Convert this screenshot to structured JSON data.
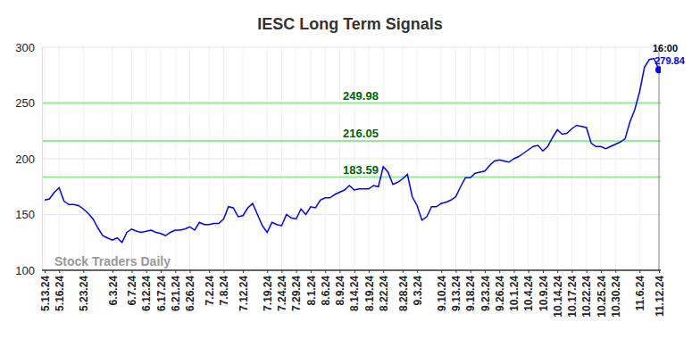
{
  "chart_data": {
    "type": "line",
    "title": "IESC Long Term Signals",
    "watermark": "Stock Traders Daily",
    "annotations": [
      "16:00"
    ],
    "categories": [
      "5.13.24",
      null,
      null,
      "5.16.24",
      null,
      null,
      null,
      null,
      "5.23.24",
      null,
      null,
      null,
      null,
      null,
      "6.3.24",
      null,
      null,
      null,
      "6.7.24",
      null,
      null,
      "6.12.24",
      null,
      null,
      "6.17.24",
      null,
      null,
      "6.21.24",
      null,
      null,
      "6.26.24",
      null,
      null,
      null,
      "7.2.24",
      null,
      null,
      "7.8.24",
      null,
      null,
      null,
      "7.12.24",
      null,
      null,
      null,
      null,
      "7.19.24",
      null,
      null,
      "7.24.24",
      null,
      null,
      "7.29.24",
      null,
      null,
      "8.1.24",
      null,
      null,
      "8.6.24",
      null,
      null,
      "8.9.24",
      null,
      null,
      "8.14.24",
      null,
      null,
      "8.19.24",
      null,
      null,
      "8.22.24",
      null,
      null,
      null,
      "8.28.24",
      null,
      null,
      "9.3.24",
      null,
      null,
      null,
      null,
      "9.10.24",
      null,
      null,
      "9.13.24",
      null,
      null,
      "9.18.24",
      null,
      null,
      "9.23.24",
      null,
      null,
      "9.26.24",
      null,
      null,
      "10.1.24",
      null,
      null,
      "10.4.24",
      null,
      null,
      "10.9.24",
      null,
      null,
      "10.14.24",
      null,
      null,
      "10.17.24",
      null,
      null,
      "10.22.24",
      null,
      null,
      "10.25.24",
      null,
      null,
      "10.30.24",
      null,
      null,
      null,
      null,
      "11.6.24",
      null,
      null,
      null,
      "11.12.24"
    ],
    "values": [
      163,
      164,
      170,
      174,
      162,
      159,
      159,
      158,
      155,
      151,
      146,
      138,
      131,
      129,
      127,
      129,
      125,
      134,
      137,
      135,
      134,
      135,
      136,
      134,
      133,
      131,
      134,
      136,
      136,
      137,
      139,
      136,
      143,
      141,
      141,
      142,
      142,
      146,
      157,
      156,
      148,
      149,
      156,
      160,
      150,
      140,
      134,
      143,
      141,
      140,
      150,
      147,
      146,
      155,
      150,
      157,
      156,
      163,
      165,
      165,
      168,
      170,
      172,
      176,
      172,
      173,
      173,
      173,
      176,
      175,
      193,
      188,
      177,
      179,
      182,
      186,
      166,
      158,
      145,
      148,
      157,
      157,
      160,
      161,
      163,
      166,
      175,
      183,
      183,
      187,
      188,
      189,
      194,
      198,
      199,
      198,
      197,
      200,
      202,
      205,
      208,
      211,
      212,
      207,
      211,
      219,
      226,
      222,
      223,
      227,
      230,
      229,
      228,
      214,
      211,
      211,
      209,
      211,
      213,
      215,
      218,
      233,
      244,
      260,
      282,
      289,
      290,
      279.84
    ],
    "color": "#0000ff",
    "levels": [
      249.98,
      216.05,
      183.59
    ],
    "ylim": [
      100,
      300
    ],
    "yticks": [
      100,
      150,
      200,
      250,
      300
    ],
    "grid": true
  }
}
